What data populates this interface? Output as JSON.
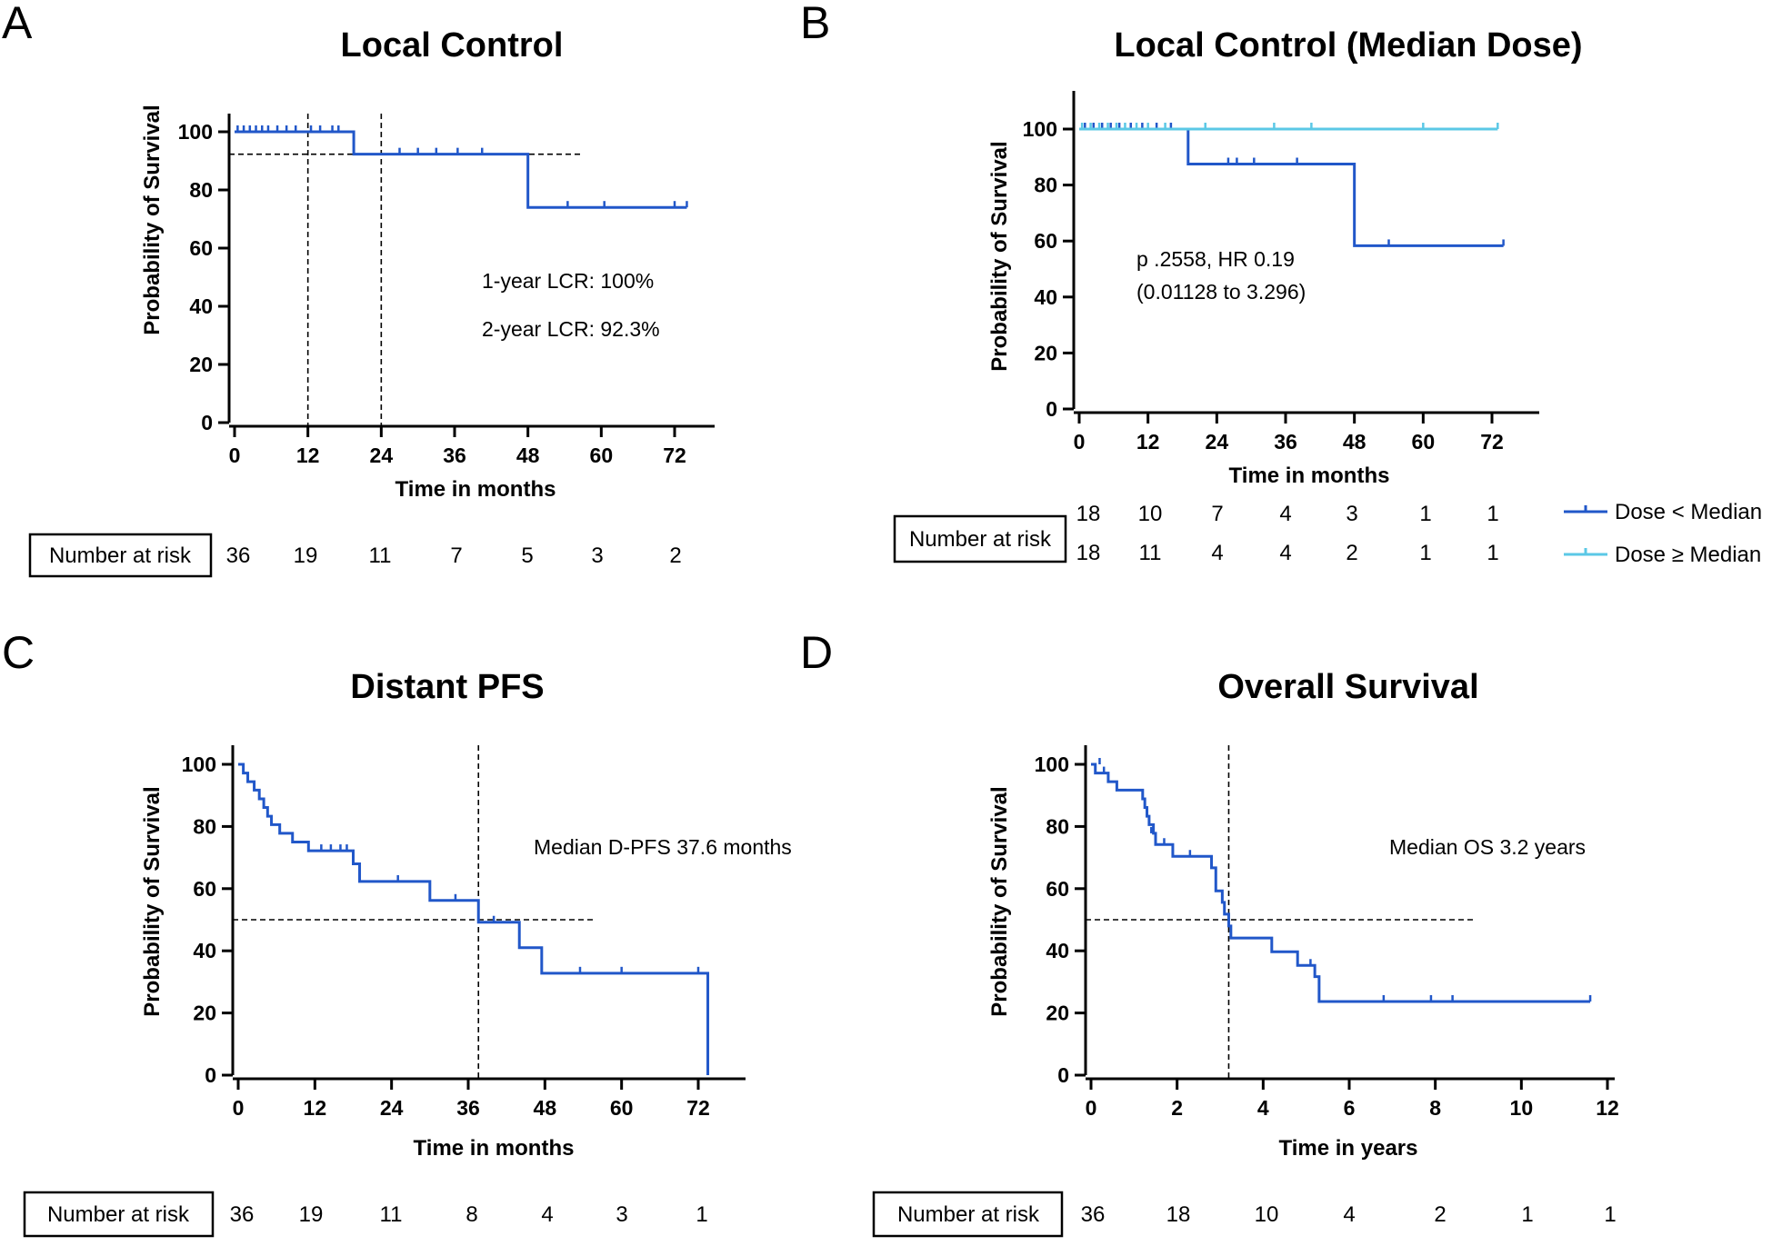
{
  "figure": {
    "colors": {
      "dark_blue": "#2157c9",
      "light_blue": "#5bc8e6"
    }
  },
  "chart_data": [
    {
      "panel": "A",
      "type": "line",
      "title": "Local Control",
      "xlabel": "Time in months",
      "ylabel": "Probability of Survival",
      "xlim": [
        0,
        72
      ],
      "ylim": [
        0,
        100
      ],
      "xticks": [
        0,
        12,
        24,
        36,
        48,
        60,
        72
      ],
      "yticks": [
        0,
        20,
        40,
        60,
        80,
        100
      ],
      "series": [
        {
          "name": "Local control",
          "color": "#2157c9",
          "steps": [
            [
              0,
              100
            ],
            [
              19.5,
              92.3
            ],
            [
              48,
              74
            ],
            [
              74,
              74
            ]
          ],
          "censors": [
            [
              0.5,
              100
            ],
            [
              1.5,
              100
            ],
            [
              2.5,
              100
            ],
            [
              3.5,
              100
            ],
            [
              4.5,
              100
            ],
            [
              5.5,
              100
            ],
            [
              7,
              100
            ],
            [
              8.5,
              100
            ],
            [
              10,
              100
            ],
            [
              12.5,
              100
            ],
            [
              14,
              100
            ],
            [
              16,
              100
            ],
            [
              17,
              100
            ],
            [
              27,
              92.3
            ],
            [
              30,
              92.3
            ],
            [
              33,
              92.3
            ],
            [
              36.5,
              92.3
            ],
            [
              40.5,
              92.3
            ],
            [
              54.5,
              74
            ],
            [
              60.5,
              74
            ],
            [
              72,
              74
            ],
            [
              74,
              74
            ]
          ]
        }
      ],
      "reference_lines": {
        "horizontal": [
          {
            "y": 92.3,
            "x_to": 57
          }
        ],
        "vertical": [
          12,
          24
        ]
      },
      "annotations": [
        "1-year LCR: 100%",
        "2-year LCR: 92.3%"
      ],
      "risk_table": {
        "label": "Number at risk",
        "rows": [
          [
            "36",
            "19",
            "11",
            "7",
            "5",
            "3",
            "2"
          ]
        ]
      }
    },
    {
      "panel": "B",
      "type": "line",
      "title": "Local Control (Median Dose)",
      "xlabel": "Time in months",
      "ylabel": "Probability of Survival",
      "xlim": [
        0,
        72
      ],
      "ylim": [
        0,
        100
      ],
      "xticks": [
        0,
        12,
        24,
        36,
        48,
        60,
        72
      ],
      "yticks": [
        0,
        20,
        40,
        60,
        80,
        100
      ],
      "series": [
        {
          "name": "Dose < Median",
          "color": "#2157c9",
          "steps": [
            [
              0,
              100
            ],
            [
              19,
              87.5
            ],
            [
              48,
              58.3
            ],
            [
              74,
              58.3
            ]
          ],
          "censors": [
            [
              1,
              100
            ],
            [
              2.5,
              100
            ],
            [
              4,
              100
            ],
            [
              5.5,
              100
            ],
            [
              7,
              100
            ],
            [
              9,
              100
            ],
            [
              11,
              100
            ],
            [
              13.5,
              100
            ],
            [
              16,
              100
            ],
            [
              26,
              87.5
            ],
            [
              27.5,
              87.5
            ],
            [
              30.5,
              87.5
            ],
            [
              38,
              87.5
            ],
            [
              54,
              58.3
            ],
            [
              74,
              58.3
            ]
          ]
        },
        {
          "name": "Dose ≥ Median",
          "color": "#5bc8e6",
          "steps": [
            [
              0,
              100
            ],
            [
              73,
              100
            ]
          ],
          "censors": [
            [
              0.5,
              100
            ],
            [
              2,
              100
            ],
            [
              3.5,
              100
            ],
            [
              5,
              100
            ],
            [
              6.5,
              100
            ],
            [
              8,
              100
            ],
            [
              10,
              100
            ],
            [
              12,
              100
            ],
            [
              15,
              100
            ],
            [
              22,
              100
            ],
            [
              34,
              100
            ],
            [
              40.5,
              100
            ],
            [
              60,
              100
            ],
            [
              73,
              100
            ]
          ]
        }
      ],
      "annotations": [
        "p .2558, HR 0.19",
        "(0.01128 to 3.296)"
      ],
      "risk_table": {
        "label": "Number at risk",
        "rows": [
          [
            "18",
            "10",
            "7",
            "4",
            "3",
            "1",
            "1"
          ],
          [
            "18",
            "11",
            "4",
            "4",
            "2",
            "1",
            "1"
          ]
        ]
      },
      "legend": [
        "Dose < Median",
        "Dose ≥ Median"
      ]
    },
    {
      "panel": "C",
      "type": "line",
      "title": "Distant PFS",
      "xlabel": "Time in months",
      "ylabel": "Probability of Survival",
      "xlim": [
        0,
        72
      ],
      "ylim": [
        0,
        100
      ],
      "xticks": [
        0,
        12,
        24,
        36,
        48,
        60,
        72
      ],
      "yticks": [
        0,
        20,
        40,
        60,
        80,
        100
      ],
      "series": [
        {
          "name": "Distant PFS",
          "color": "#2157c9",
          "steps": [
            [
              0,
              100
            ],
            [
              0.8,
              97.2
            ],
            [
              1.5,
              94.4
            ],
            [
              2.5,
              91.7
            ],
            [
              3.3,
              88.9
            ],
            [
              4,
              86.1
            ],
            [
              4.6,
              83.3
            ],
            [
              5.2,
              80.6
            ],
            [
              6.5,
              77.8
            ],
            [
              8.5,
              75
            ],
            [
              11,
              72.2
            ],
            [
              18,
              68
            ],
            [
              19,
              62.3
            ],
            [
              30,
              56.2
            ],
            [
              37.6,
              49.2
            ],
            [
              44,
              41
            ],
            [
              47.5,
              32.8
            ],
            [
              73.5,
              0
            ]
          ],
          "censors": [
            [
              13,
              72.2
            ],
            [
              14.5,
              72.2
            ],
            [
              16,
              72.2
            ],
            [
              17,
              72.2
            ],
            [
              25,
              62.3
            ],
            [
              34,
              56.2
            ],
            [
              40,
              49.2
            ],
            [
              53.5,
              32.8
            ],
            [
              60,
              32.8
            ],
            [
              72,
              32.8
            ]
          ]
        }
      ],
      "reference_lines": {
        "horizontal": [
          {
            "y": 50,
            "x_to": 56
          }
        ],
        "vertical": [
          37.6
        ]
      },
      "annotations": [
        "Median D-PFS 37.6 months"
      ],
      "risk_table": {
        "label": "Number at risk",
        "rows": [
          [
            "36",
            "19",
            "11",
            "8",
            "4",
            "3",
            "1"
          ]
        ]
      }
    },
    {
      "panel": "D",
      "type": "line",
      "title": "Overall Survival",
      "xlabel": "Time in years",
      "ylabel": "Probability of Survival",
      "xlim": [
        0,
        12
      ],
      "ylim": [
        0,
        100
      ],
      "xticks": [
        0,
        2,
        4,
        6,
        8,
        10,
        12
      ],
      "yticks": [
        0,
        20,
        40,
        60,
        80,
        100
      ],
      "series": [
        {
          "name": "Overall survival",
          "color": "#2157c9",
          "steps": [
            [
              0,
              100
            ],
            [
              0.1,
              97.2
            ],
            [
              0.4,
              94.4
            ],
            [
              0.6,
              91.7
            ],
            [
              1.2,
              88.9
            ],
            [
              1.25,
              86.1
            ],
            [
              1.3,
              83.3
            ],
            [
              1.35,
              80.6
            ],
            [
              1.45,
              77.8
            ],
            [
              1.5,
              74.2
            ],
            [
              1.9,
              70.4
            ],
            [
              2.8,
              66.7
            ],
            [
              2.9,
              59.3
            ],
            [
              3.05,
              55.6
            ],
            [
              3.1,
              51.8
            ],
            [
              3.2,
              48
            ],
            [
              3.25,
              44.1
            ],
            [
              4.2,
              39.7
            ],
            [
              4.8,
              35.3
            ],
            [
              5.2,
              31.7
            ],
            [
              5.3,
              23.7
            ],
            [
              11.6,
              23.7
            ]
          ],
          "censors": [
            [
              0.2,
              100
            ],
            [
              0.3,
              97.2
            ],
            [
              1.4,
              77.8
            ],
            [
              1.7,
              74.2
            ],
            [
              2.3,
              70.4
            ],
            [
              5.1,
              35.3
            ],
            [
              6.8,
              23.7
            ],
            [
              7.9,
              23.7
            ],
            [
              8.4,
              23.7
            ],
            [
              11.6,
              23.7
            ]
          ]
        }
      ],
      "reference_lines": {
        "horizontal": [
          {
            "y": 50,
            "x_to": 8.9
          }
        ],
        "vertical": [
          3.2
        ]
      },
      "annotations": [
        "Median OS 3.2 years"
      ],
      "risk_table": {
        "label": "Number at risk",
        "rows": [
          [
            "36",
            "18",
            "10",
            "4",
            "2",
            "1",
            "1"
          ]
        ]
      }
    }
  ]
}
